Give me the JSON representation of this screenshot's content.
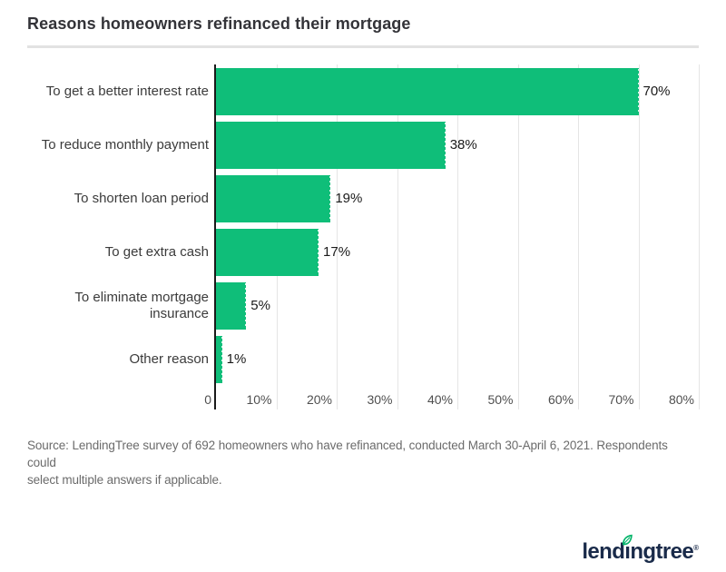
{
  "title": "Reasons homeowners refinanced their mortgage",
  "chart_data": {
    "type": "bar",
    "orientation": "horizontal",
    "title": "Reasons homeowners refinanced their mortgage",
    "categories": [
      "To get a better interest rate",
      "To reduce monthly payment",
      "To shorten loan period",
      "To get extra cash",
      "To eliminate mortgage insurance",
      "Other reason"
    ],
    "values": [
      70,
      38,
      19,
      17,
      5,
      1
    ],
    "value_labels": [
      "70%",
      "38%",
      "19%",
      "17%",
      "5%",
      "1%"
    ],
    "xlabel": "",
    "ylabel": "",
    "xlim": [
      0,
      80
    ],
    "ticks": [
      0,
      10,
      20,
      30,
      40,
      50,
      60,
      70,
      80
    ],
    "tick_labels": [
      "0",
      "10%",
      "20%",
      "30%",
      "40%",
      "50%",
      "60%",
      "70%",
      "80%"
    ],
    "grid": true,
    "legend": "none",
    "bar_color": "#0fbe79",
    "axis_color": "#1a1a1a",
    "gridline_color": "#e5e5e5"
  },
  "source": {
    "line1": "Source: LendingTree survey of 692 homeowners who have refinanced, conducted March 30-April 6, 2021. Respondents could",
    "line2": "select multiple answers if applicable."
  },
  "footer": {
    "logo_name": "lendingtree-logo",
    "logo_part1": "lend",
    "logo_part2": "ı",
    "logo_part3": "ngtree",
    "logo_reg": "®",
    "brand_navy": "#1a2b4a",
    "leaf_green": "#00b368"
  }
}
